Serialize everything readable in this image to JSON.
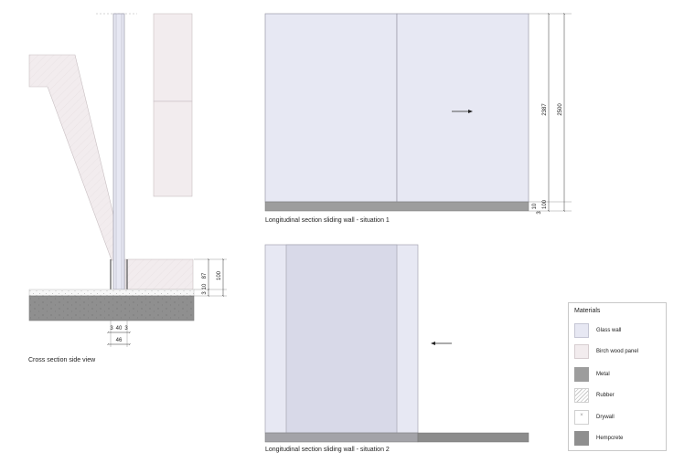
{
  "colors": {
    "glass": "#e7e8f3",
    "birch": "#f2ecee",
    "metal": "#9d9d9d",
    "hempcrete": "#8f8f8f",
    "drywall": "#ffffff",
    "line": "#9a9a9a"
  },
  "cross_section": {
    "caption": "Cross section side view",
    "dims": {
      "h87": "87",
      "h100": "100",
      "h10": "10",
      "h3": "3",
      "w3a": "3",
      "w40": "40",
      "w3b": "3",
      "w46": "46"
    }
  },
  "longitudinal_1": {
    "caption": "Longitudinal section sliding wall - situation 1",
    "dims": {
      "h2387": "2387",
      "h2500": "2500",
      "h100": "100",
      "h10": "10",
      "h3": "3"
    }
  },
  "longitudinal_2": {
    "caption": "Longitudinal section sliding wall - situation 2"
  },
  "legend": {
    "title": "Materials",
    "items": [
      {
        "label": "Glass wall",
        "material": "glass"
      },
      {
        "label": "Birch wood panel",
        "material": "birch"
      },
      {
        "label": "Metal",
        "material": "metal"
      },
      {
        "label": "Rubber",
        "material": "rubber"
      },
      {
        "label": "Drywall",
        "material": "drywall"
      },
      {
        "label": "Hempcrete",
        "material": "hempcrete"
      }
    ]
  }
}
